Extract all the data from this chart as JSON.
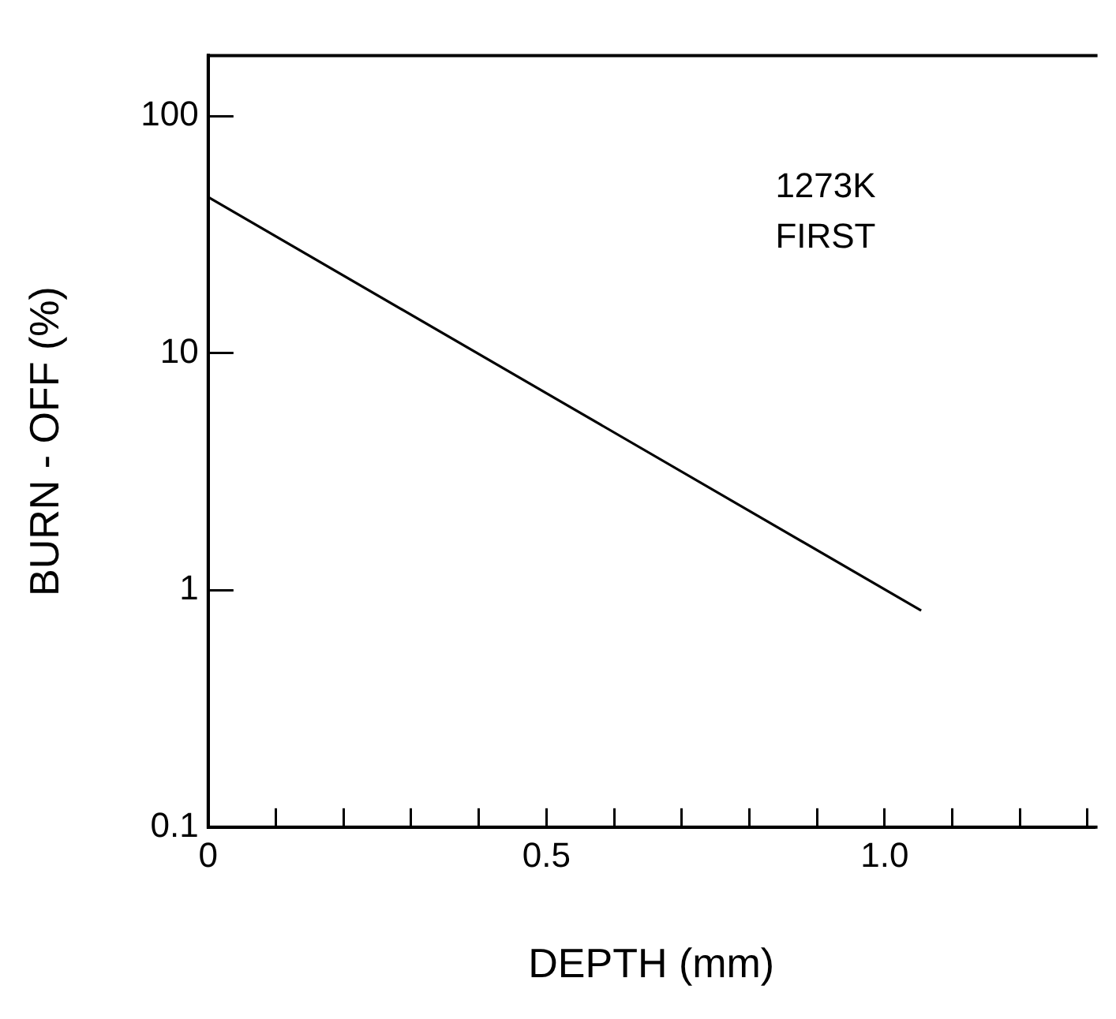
{
  "chart_data": {
    "type": "line",
    "xlabel": "DEPTH (mm)",
    "ylabel": "BURN - OFF (%)",
    "x": [
      0,
      1.054
    ],
    "series": [
      {
        "color": "#000000",
        "values": [
          45.5,
          0.82
        ]
      }
    ],
    "log": "y",
    "xlim": [
      0,
      1.31
    ],
    "ylim": [
      0.1,
      180
    ],
    "xticks": [
      0,
      {
        "value": 0.1,
        "label": null
      },
      {
        "value": 0.2,
        "label": null
      },
      {
        "value": 0.3,
        "label": null
      },
      {
        "value": 0.4,
        "label": null
      },
      0.5,
      {
        "value": 0.6,
        "label": null
      },
      {
        "value": 0.7,
        "label": null
      },
      {
        "value": 0.8,
        "label": null
      },
      {
        "value": 0.9,
        "label": null
      },
      {
        "value": 1,
        "label": "1.0"
      },
      {
        "value": 1.1,
        "label": null
      },
      {
        "value": 1.2,
        "label": null
      },
      {
        "value": 1.3,
        "label": null
      }
    ],
    "yticks": [
      0.1,
      1,
      10,
      100
    ],
    "annotations": [
      "1273K",
      "FIRST"
    ],
    "grid": false,
    "legend": false,
    "marker": "none",
    "line_style": "solid"
  }
}
